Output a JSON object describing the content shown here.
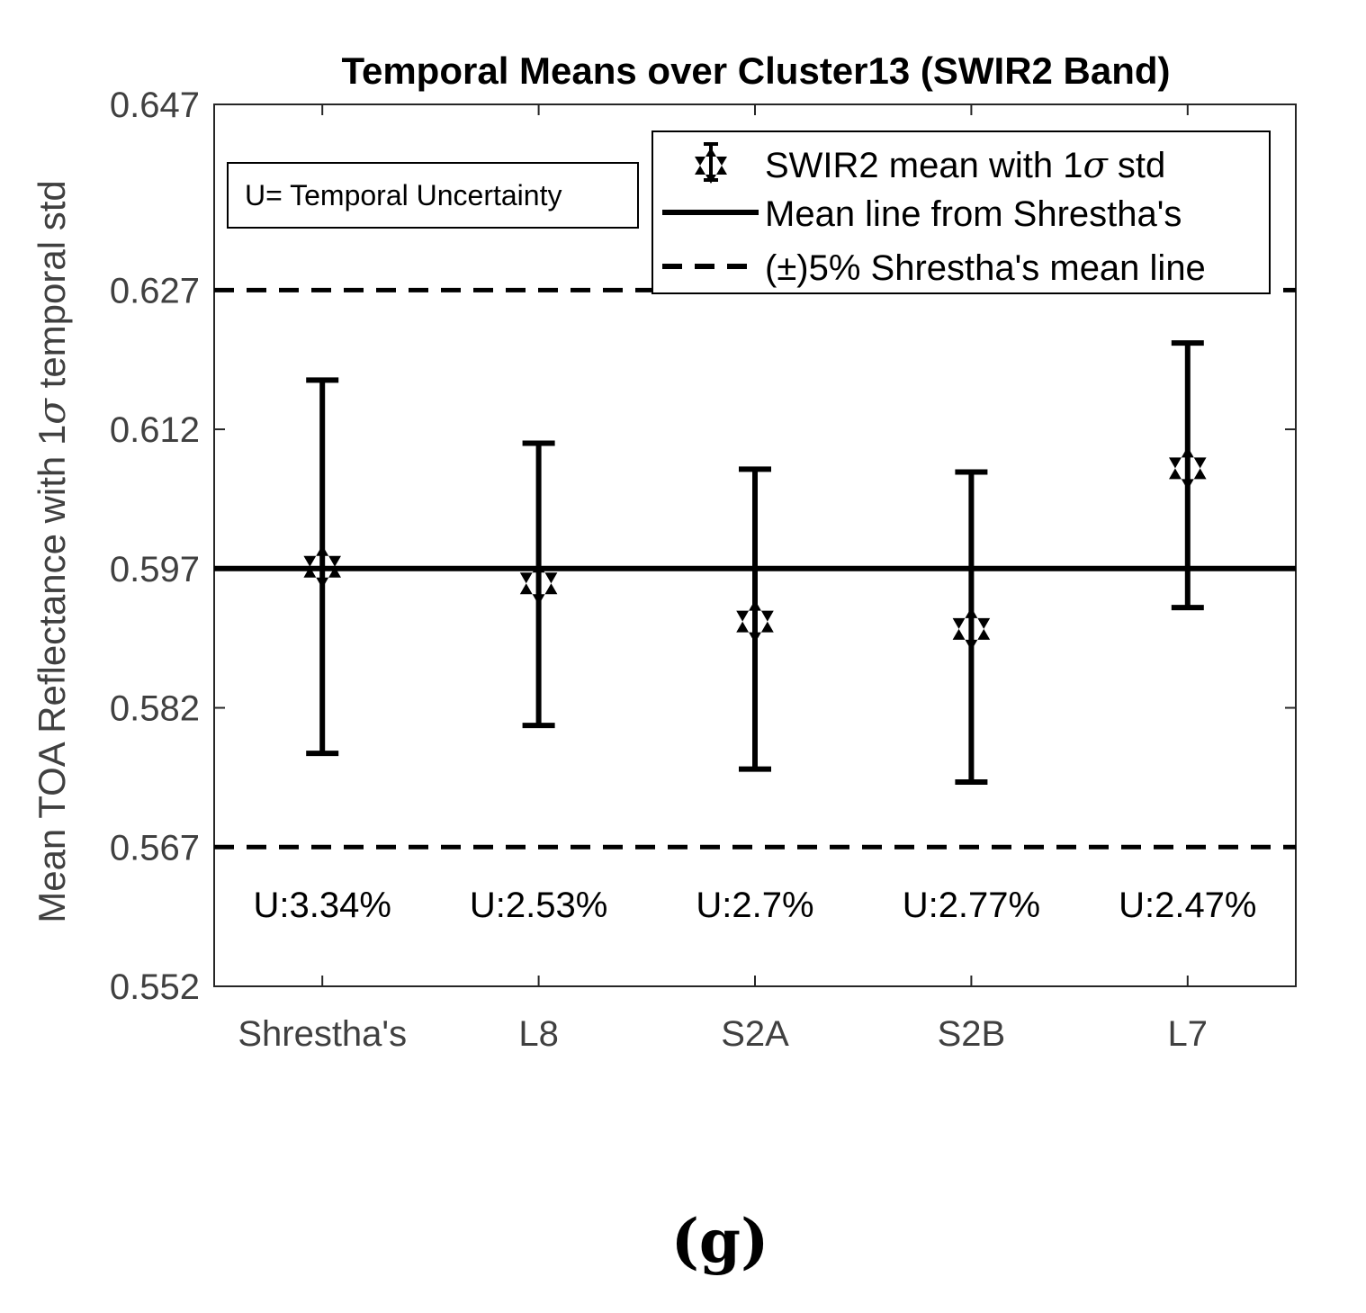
{
  "chart_data": {
    "type": "errorbar",
    "title": "Temporal Means over Cluster13 (SWIR2 Band)",
    "ylabel_main": "Mean TOA Reflectance with 1",
    "ylabel_sigma": "σ",
    "ylabel_tail": " temporal std",
    "xlabel": "",
    "categories": [
      "Shrestha's",
      "L8",
      "S2A",
      "S2B",
      "L7"
    ],
    "means": [
      0.5972,
      0.5954,
      0.5913,
      0.5905,
      0.6078
    ],
    "lower": [
      0.5771,
      0.5801,
      0.5754,
      0.574,
      0.5928
    ],
    "upper": [
      0.6173,
      0.6105,
      0.6077,
      0.6074,
      0.6213
    ],
    "uncertainty_labels": [
      "U:3.34%",
      "U:2.53%",
      "U:2.7%",
      "U:2.77%",
      "U:2.47%"
    ],
    "reference_mean": 0.597,
    "reference_upper": 0.627,
    "reference_lower": 0.567,
    "ylim": [
      0.552,
      0.647
    ],
    "yticks": [
      0.552,
      0.567,
      0.582,
      0.597,
      0.612,
      0.627,
      0.647
    ],
    "ytick_labels": [
      "0.552",
      "0.567",
      "0.582",
      "0.597",
      "0.612",
      "0.627",
      "0.647"
    ],
    "annotation_box": "U= Temporal Uncertainty",
    "legend": {
      "placement": "top-right",
      "entry1_main": "SWIR2 mean with 1",
      "entry1_sigma": "σ",
      "entry1_tail": " std",
      "entry2": "Mean line from Shrestha's",
      "entry3": "(±)5% Shrestha's mean line"
    },
    "panel_label": "(g)",
    "colors": {
      "marks": "#000000",
      "tick_text": "#404040",
      "axes": "#262626",
      "background": "#ffffff"
    }
  }
}
